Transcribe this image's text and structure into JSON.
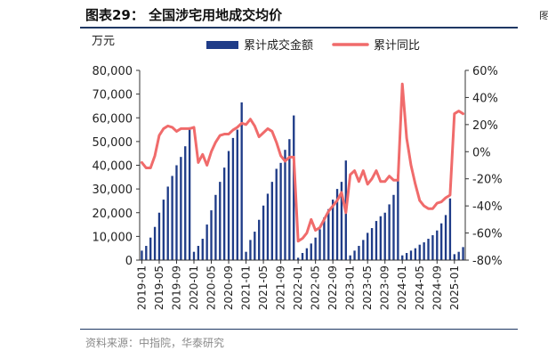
{
  "title": "图表29：  全国涉宅用地成交均价",
  "source": "资料来源：中指院，华泰研究",
  "right_clip_text": "图",
  "chart_data": {
    "type": "bar+line",
    "left_unit": "万元",
    "y_left": {
      "range": [
        0,
        80000
      ],
      "ticks": [
        "0",
        "10,000",
        "20,000",
        "30,000",
        "40,000",
        "50,000",
        "60,000",
        "70,000",
        "80,000"
      ]
    },
    "y_right": {
      "range": [
        -80,
        60
      ],
      "ticks": [
        "-80%",
        "-60%",
        "-40%",
        "-20%",
        "0%",
        "20%",
        "40%",
        "60%"
      ]
    },
    "x_tick_labels": [
      "2019-01",
      "2019-05",
      "2019-09",
      "2020-01",
      "2020-05",
      "2020-09",
      "2021-01",
      "2021-05",
      "2021-09",
      "2022-01",
      "2022-05",
      "2022-09",
      "2023-01",
      "2023-05",
      "2023-09",
      "2024-01",
      "2024-05",
      "2024-09",
      "2025-01"
    ],
    "legend": [
      "累计成交金额",
      "累计同比"
    ],
    "colors": {
      "bar": "#1f3c88",
      "line": "#f06b6b"
    },
    "bars_start": "2019-01",
    "bars": [
      4000,
      6000,
      9500,
      14000,
      20000,
      25500,
      31000,
      35500,
      40000,
      43500,
      48000,
      56000,
      3500,
      6000,
      9000,
      15000,
      21000,
      27500,
      33000,
      39000,
      46000,
      51500,
      55000,
      66500,
      3500,
      8500,
      12000,
      17000,
      23000,
      28000,
      33000,
      38500,
      41000,
      46500,
      51000,
      61000,
      1000,
      3000,
      5000,
      7000,
      9500,
      13000,
      18000,
      21500,
      25500,
      30000,
      33000,
      42000,
      2000,
      4000,
      6000,
      8500,
      11500,
      13500,
      16500,
      18500,
      20000,
      23500,
      27500,
      36000,
      2000,
      3000,
      4000,
      5000,
      6500,
      7500,
      9000,
      10500,
      12500,
      15500,
      19000,
      26000,
      2500,
      3500,
      5500
    ],
    "yoy": [
      -8,
      -12,
      -12,
      -3,
      12,
      17,
      19,
      18,
      15,
      17,
      17,
      17,
      18,
      -8,
      -2,
      -10,
      0,
      7,
      12,
      13,
      13,
      16,
      18,
      21,
      20,
      24,
      19,
      11,
      14,
      17,
      15,
      7,
      -3,
      -7,
      -4,
      -4,
      -66,
      -64,
      -60,
      -50,
      -58,
      -56,
      -50,
      -44,
      -40,
      -36,
      -30,
      -45,
      -17,
      -14,
      -22,
      -14,
      -24,
      -20,
      -14,
      -22,
      -22,
      -18,
      -21,
      -21,
      50,
      10,
      -10,
      -24,
      -36,
      -40,
      -42,
      -42,
      -38,
      -37,
      -34,
      -32,
      28,
      30,
      28
    ]
  }
}
